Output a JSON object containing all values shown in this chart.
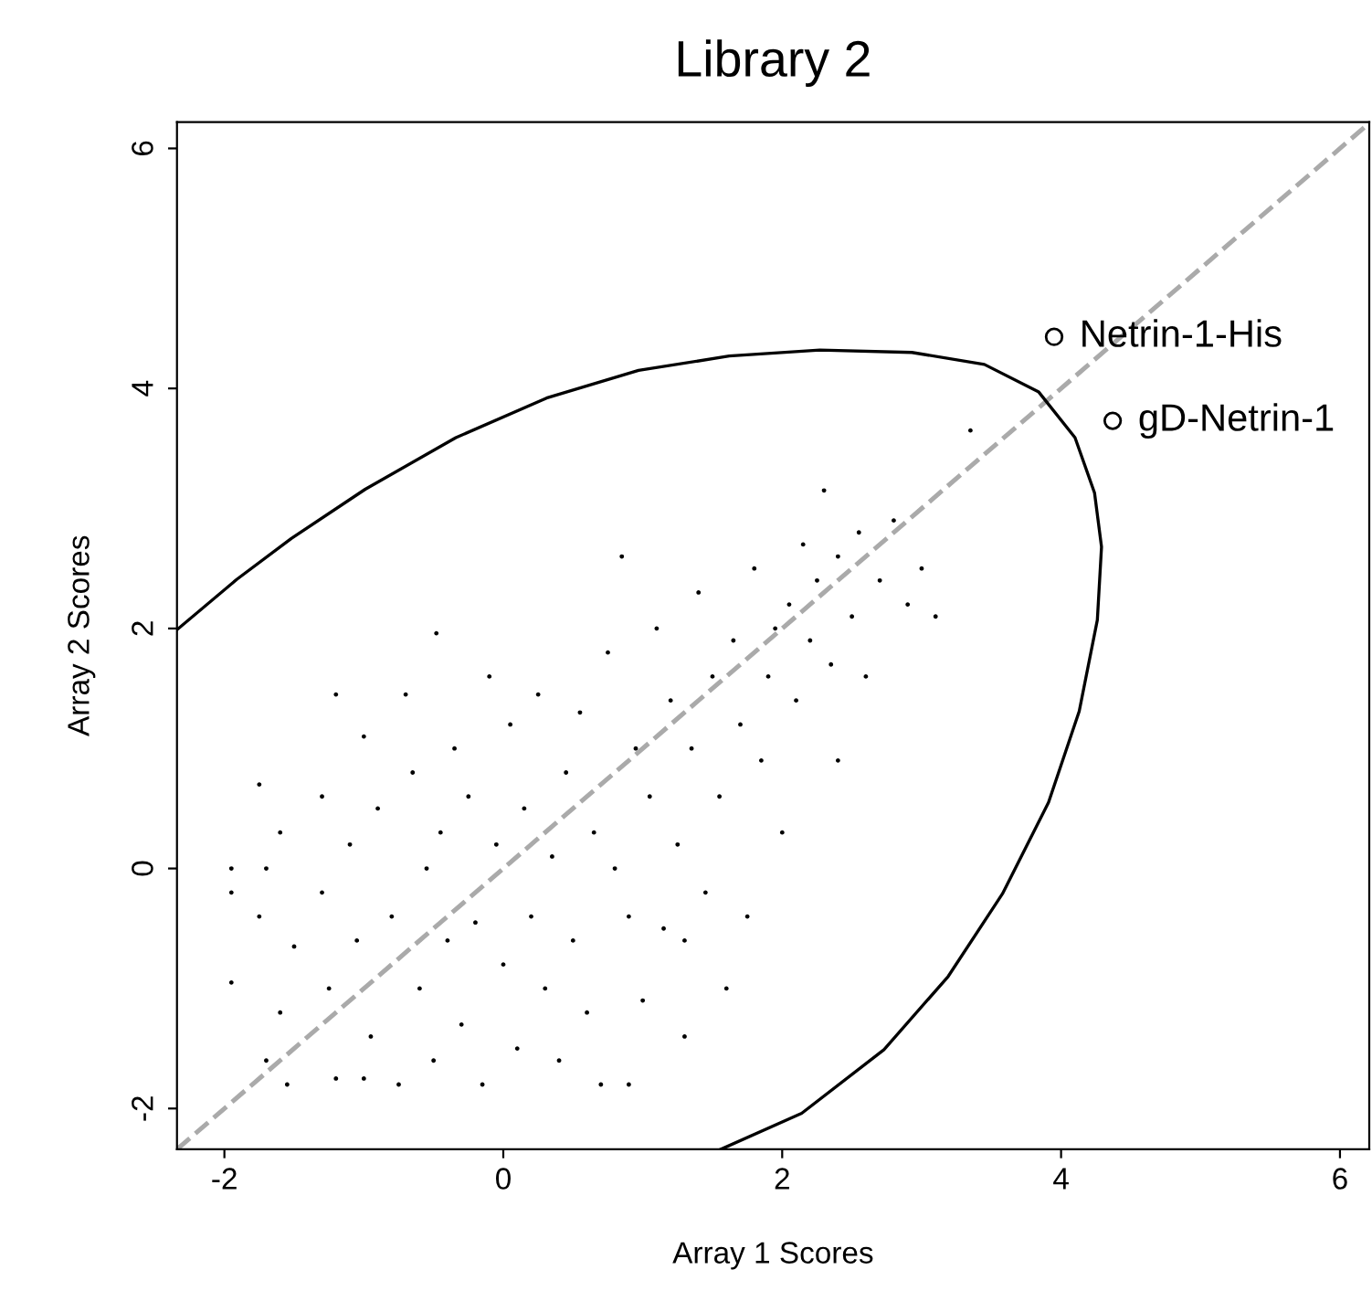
{
  "chart_data": {
    "type": "scatter",
    "title": "Library 2",
    "xlabel": "Array 1 Scores",
    "ylabel": "Array 2 Scores",
    "xlim": [
      -2.34,
      6.21
    ],
    "ylim": [
      -2.34,
      6.22
    ],
    "xticks": [
      -2,
      0,
      2,
      4,
      6
    ],
    "yticks": [
      -2,
      0,
      2,
      4,
      6
    ],
    "grid": false,
    "legend": false,
    "series": [
      {
        "color": "#000000",
        "marker": "circle",
        "x": [
          -1.95,
          -1.95,
          -1.95,
          -1.75,
          -1.75,
          -1.7,
          -1.6,
          -1.6,
          -1.55,
          -1.5,
          -1.3,
          -1.3,
          -1.25,
          -1.2,
          -1.2,
          -1.1,
          -1.05,
          -1.0,
          -0.95,
          -0.9,
          -0.8,
          -0.75,
          -0.7,
          -0.65,
          -0.6,
          -0.55,
          -0.5,
          -0.45,
          -0.4,
          -0.35,
          -0.3,
          -0.25,
          -0.2,
          -0.15,
          -0.1,
          -0.05,
          0.0,
          0.05,
          0.1,
          0.15,
          0.2,
          0.25,
          0.3,
          0.35,
          0.4,
          0.45,
          0.5,
          0.55,
          0.6,
          0.65,
          0.7,
          0.75,
          0.8,
          0.85,
          0.9,
          0.95,
          1.0,
          1.05,
          1.1,
          1.15,
          1.2,
          1.25,
          1.3,
          1.35,
          1.4,
          1.45,
          1.5,
          1.55,
          1.6,
          1.65,
          1.7,
          1.75,
          1.8,
          1.85,
          1.9,
          1.95,
          2.0,
          2.05,
          2.1,
          2.15,
          2.2,
          2.25,
          2.3,
          2.35,
          2.4,
          2.5,
          2.55,
          2.6,
          2.7,
          2.8,
          2.9,
          3.0,
          3.1,
          3.35,
          -0.48,
          -1.7,
          1.3,
          2.4,
          0.9,
          -1.0
        ],
        "values": [
          -0.95,
          0.0,
          -0.2,
          0.7,
          -0.4,
          -1.6,
          -1.2,
          0.3,
          -1.8,
          -0.65,
          0.6,
          -0.2,
          -1.0,
          1.45,
          -1.75,
          0.2,
          -0.6,
          1.1,
          -1.4,
          0.5,
          -0.4,
          -1.8,
          1.45,
          0.8,
          -1.0,
          0.0,
          -1.6,
          0.3,
          -0.6,
          1.0,
          -1.3,
          0.6,
          -0.45,
          -1.8,
          1.6,
          0.2,
          -0.8,
          1.2,
          -1.5,
          0.5,
          -0.4,
          1.45,
          -1.0,
          0.1,
          -1.6,
          0.8,
          -0.6,
          1.3,
          -1.2,
          0.3,
          -1.8,
          1.8,
          0.0,
          2.6,
          -0.4,
          1.0,
          -1.1,
          0.6,
          2.0,
          -0.5,
          1.4,
          0.2,
          -1.4,
          1.0,
          2.3,
          -0.2,
          1.6,
          0.6,
          -1.0,
          1.9,
          1.2,
          -0.4,
          2.5,
          0.9,
          1.6,
          2.0,
          0.3,
          2.2,
          1.4,
          2.7,
          1.9,
          2.4,
          3.15,
          1.7,
          2.6,
          2.1,
          2.8,
          1.6,
          2.4,
          2.9,
          2.2,
          2.5,
          2.1,
          3.65,
          1.96,
          0.0,
          -0.6,
          0.9,
          -1.8,
          -1.75
        ]
      },
      {
        "color": "#000000",
        "marker": "circle",
        "x": [
          3.95,
          4.37
        ],
        "values": [
          4.43,
          3.73
        ]
      },
      {
        "type": "line",
        "color": "#aaaaaa",
        "line_style": "dashed",
        "marker": "none",
        "x": [
          -2.34,
          6.21
        ],
        "values": [
          -2.34,
          6.21
        ]
      },
      {
        "type": "line",
        "color": "#000000",
        "line_style": "solid",
        "marker": "none",
        "x": [
          -2.34,
          -1.91,
          -1.52,
          -0.99,
          -0.34,
          0.31,
          0.97,
          1.62,
          2.27,
          2.93,
          3.45,
          3.84,
          4.1,
          4.24,
          4.29,
          4.26,
          4.13,
          3.91,
          3.58,
          3.19,
          2.73,
          2.14,
          1.56
        ],
        "values": [
          1.99,
          2.41,
          2.75,
          3.16,
          3.59,
          3.92,
          4.15,
          4.27,
          4.32,
          4.3,
          4.2,
          3.97,
          3.59,
          3.13,
          2.68,
          2.07,
          1.31,
          0.55,
          -0.21,
          -0.9,
          -1.51,
          -2.04,
          -2.34
        ]
      }
    ],
    "annotations": [
      {
        "text": "Netrin-1-His",
        "x": 3.95,
        "y": 4.43
      },
      {
        "text": "gD-Netrin-1",
        "x": 4.37,
        "y": 3.73
      }
    ]
  }
}
